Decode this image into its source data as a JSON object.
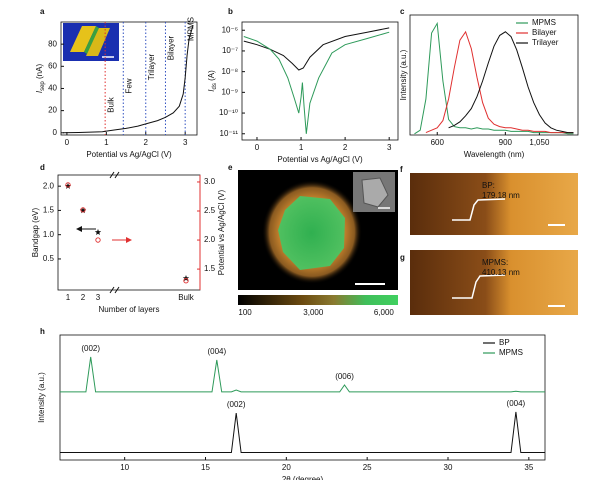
{
  "chart_data": [
    {
      "type": "line",
      "panel": "a",
      "xlabel": "Potential vs Ag/AgCl (V)",
      "ylabel": [
        "I",
        "sep",
        " (nA)"
      ],
      "xlim": [
        -0.15,
        3.3
      ],
      "ylim": [
        -2,
        100
      ],
      "xticks": [
        0,
        1,
        2,
        3
      ],
      "yticks": [
        0,
        20,
        40,
        60,
        80
      ],
      "thresholds": [
        0.97,
        1.43,
        2.0,
        2.5,
        3.0
      ],
      "threshold_colors": [
        "#e03030",
        "#3050c0",
        "#3050c0",
        "#3050c0",
        "#3050c0"
      ],
      "threshold_labels": [
        "Bulk",
        "Few",
        "Trilayer",
        "Bilayer",
        "MPMS"
      ],
      "x": [
        -0.1,
        0.3,
        0.6,
        0.9,
        1.0,
        1.2,
        1.5,
        1.8,
        2.0,
        2.3,
        2.5,
        2.7,
        2.85,
        2.95,
        3.0,
        3.05,
        3.1,
        3.2
      ],
      "series": [
        {
          "color": "#111111",
          "values": [
            0,
            0.3,
            0.6,
            1,
            1.5,
            2.5,
            4,
            6,
            8,
            11,
            14,
            18,
            24,
            35,
            50,
            70,
            85,
            97
          ]
        }
      ]
    },
    {
      "type": "line",
      "panel": "b",
      "xlabel": "Potential vs Ag/AgCl (V)",
      "ylabel": [
        "I",
        "ds",
        " (A)"
      ],
      "log": true,
      "xlim": [
        -0.34,
        3.2
      ],
      "ylim": [
        5e-12,
        2.5e-06
      ],
      "xticks": [
        0,
        1,
        2,
        3
      ],
      "yticks": [
        {
          "value": 1e-06,
          "label": "10⁻⁶"
        },
        {
          "value": 1e-07,
          "label": "10⁻⁷"
        },
        {
          "value": 1e-08,
          "label": "10⁻⁸"
        },
        {
          "value": 1e-09,
          "label": "10⁻⁹"
        },
        {
          "value": 1e-10,
          "label": "10⁻¹⁰"
        },
        {
          "value": 1e-11,
          "label": "10⁻¹¹"
        }
      ],
      "series": [
        {
          "color": "#111111",
          "x": [
            -0.3,
            0,
            0.3,
            0.6,
            0.8,
            0.95,
            1.05,
            1.2,
            1.5,
            2.0,
            2.5,
            3.0
          ],
          "values": [
            3e-07,
            2e-07,
            1.2e-07,
            6e-08,
            2.5e-08,
            1.2e-08,
            1.5e-08,
            5e-08,
            2e-07,
            5e-07,
            8e-07,
            1.3e-06
          ]
        },
        {
          "color": "#2e9a5a",
          "x": [
            -0.3,
            0,
            0.3,
            0.5,
            0.7,
            0.85,
            0.95,
            1.0,
            1.03,
            1.07,
            1.12,
            1.2,
            1.4,
            1.7,
            2.0,
            2.5,
            3.0
          ],
          "values": [
            5e-07,
            3e-07,
            1.2e-07,
            4e-08,
            5e-09,
            5e-10,
            1e-10,
            6e-10,
            3e-09,
            2e-10,
            1e-11,
            3e-10,
            5e-09,
            8e-08,
            2e-07,
            4e-07,
            8e-07
          ]
        }
      ]
    },
    {
      "type": "line",
      "panel": "c",
      "xlabel": "Wavelength (nm)",
      "ylabel": [
        "Intensity (a.u.)"
      ],
      "legend": "upper right",
      "xlim": [
        480,
        1220
      ],
      "ylim": [
        0,
        1
      ],
      "xticks": [
        600,
        900,
        {
          "value": 1050,
          "label": "1,050"
        }
      ],
      "x": [
        500,
        525,
        550,
        575,
        600,
        625,
        650,
        675,
        700,
        725,
        750,
        775,
        800,
        825,
        850,
        875,
        900,
        925,
        950,
        975,
        1000,
        1025,
        1050,
        1075,
        1100,
        1125,
        1150,
        1175,
        1200
      ],
      "series": [
        {
          "name": "MPMS",
          "color": "#2e9a5a",
          "values": [
            0.01,
            0.04,
            0.3,
            0.85,
            0.93,
            0.45,
            0.13,
            0.07,
            0.06,
            0.06,
            0.05,
            0.06,
            0.05,
            0.05,
            0.04,
            0.04,
            0.04,
            0.03,
            0.03,
            0.03,
            0.03,
            0.02,
            0.02,
            0.02,
            0.02,
            0.02,
            0.02,
            0.01,
            0.01
          ]
        },
        {
          "name": "Bilayer",
          "color": "#e03030",
          "values": [
            null,
            null,
            0.02,
            0.04,
            0.06,
            0.12,
            0.3,
            0.56,
            0.79,
            0.86,
            0.72,
            0.48,
            0.27,
            0.14,
            0.09,
            0.07,
            0.06,
            0.06,
            0.05,
            0.04,
            0.04,
            0.03,
            0.03,
            0.03,
            0.02,
            0.02,
            0.02,
            0.02,
            0.02
          ]
        },
        {
          "name": "Trilayer",
          "color": "#111111",
          "values": [
            null,
            null,
            null,
            null,
            null,
            null,
            0.06,
            0.08,
            0.11,
            0.16,
            0.22,
            0.32,
            0.45,
            0.6,
            0.74,
            0.83,
            0.86,
            0.82,
            0.71,
            0.56,
            0.4,
            0.27,
            0.17,
            0.1,
            0.06,
            0.04,
            0.03,
            0.02,
            0.02
          ]
        }
      ]
    },
    {
      "type": "scatter",
      "panel": "d",
      "xlabel": "Number of layers",
      "ylabel": [
        "Bandgap (eV)"
      ],
      "y2label": "Potential vs Ag/AgCl (V)",
      "categories": [
        "1",
        "2",
        "3",
        "Bulk"
      ],
      "ylim": [
        -0.14,
        2.23
      ],
      "y2lim": [
        1.14,
        3.12
      ],
      "yticks": [
        0.5,
        {
          "value": 1,
          "label": "1.0"
        },
        1.5,
        {
          "value": 2,
          "label": "2.0"
        }
      ],
      "y2ticks": [
        1.5,
        {
          "value": 2,
          "label": "2.0"
        },
        2.5,
        {
          "value": 3,
          "label": "3.0"
        }
      ],
      "y2color": "#e03030",
      "series": [
        {
          "color": "#111111",
          "marker": "star",
          "values": [
            2.0,
            1.5,
            1.05,
            0.1
          ]
        },
        {
          "color": "#e03030",
          "marker": "circle",
          "axis": "y2",
          "values": [
            2.95,
            2.52,
            2.0,
            1.3
          ]
        }
      ]
    },
    {
      "type": "image",
      "panel": "e",
      "colorbar_lim": [
        -200,
        6600
      ],
      "colorbar_ticks": [
        100,
        {
          "value": 3000,
          "label": "3,000"
        },
        {
          "value": 6000,
          "label": "6,000"
        }
      ]
    },
    {
      "type": "image",
      "panel": "f",
      "annotation": [
        "BP:",
        "179.18 nm"
      ]
    },
    {
      "type": "image",
      "panel": "g",
      "annotation": [
        "MPMS:",
        "410.13 nm"
      ]
    },
    {
      "type": "line",
      "panel": "h",
      "xlabel": "2θ (degree)",
      "ylabel": [
        "Intensity (a.u.)"
      ],
      "legend": "upper right",
      "xlim": [
        6,
        36
      ],
      "ylim": [
        0,
        2
      ],
      "xticks": [
        10,
        15,
        20,
        25,
        30,
        35
      ],
      "x": [
        6,
        7.6,
        7.9,
        8.2,
        15.4,
        15.7,
        16.0,
        16.6,
        16.9,
        17.2,
        23.3,
        23.6,
        23.9,
        33.9,
        34.2,
        34.5,
        36
      ],
      "series": [
        {
          "name": "BP",
          "color": "#111111",
          "values": [
            0.12,
            0.12,
            0.12,
            0.12,
            0.12,
            0.12,
            0.12,
            0.12,
            0.75,
            0.12,
            0.12,
            0.12,
            0.12,
            0.12,
            0.77,
            0.12,
            0.12
          ],
          "annotations": [
            {
              "text": "(002)",
              "x": 16.9
            },
            {
              "text": "(004)",
              "x": 34.2
            }
          ]
        },
        {
          "name": "MPMS",
          "color": "#2e9a5a",
          "values": [
            1.09,
            1.09,
            1.65,
            1.09,
            1.09,
            1.6,
            1.09,
            1.09,
            1.12,
            1.09,
            1.09,
            1.2,
            1.09,
            1.09,
            1.1,
            1.09,
            1.09
          ],
          "annotations": [
            {
              "text": "(002)",
              "x": 7.9
            },
            {
              "text": "(004)",
              "x": 15.7
            },
            {
              "text": "(006)",
              "x": 23.6
            }
          ]
        }
      ]
    }
  ]
}
